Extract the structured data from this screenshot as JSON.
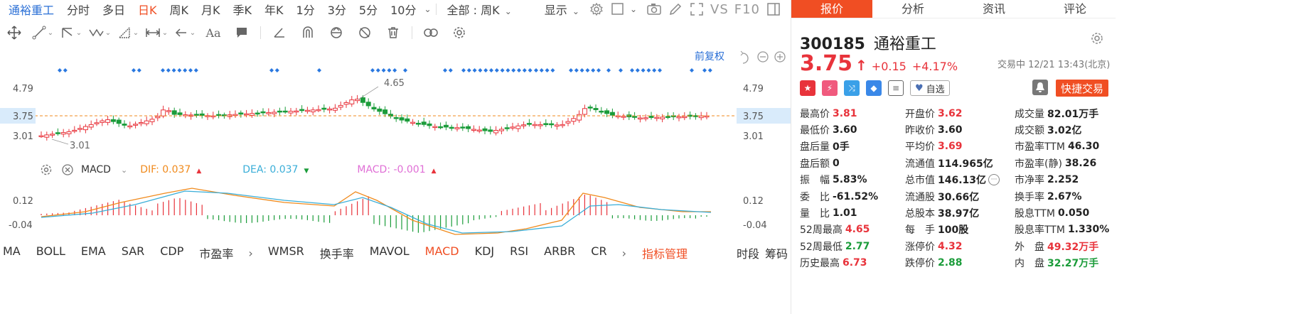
{
  "toolbar": {
    "stock_name": "通裕重工",
    "periods": [
      "分时",
      "多日",
      "日K",
      "周K",
      "月K",
      "季K",
      "年K",
      "1分",
      "3分",
      "5分",
      "10分"
    ],
    "active_period": "日K",
    "scope_label": "全部 : 周K",
    "display_label": "显示",
    "vs_label": "VS",
    "f10_label": "F10"
  },
  "tools": [
    "crosshair",
    "line",
    "channel",
    "wave",
    "measure",
    "range",
    "arrow",
    "text",
    "comment",
    "ray",
    "magnet",
    "sync",
    "hide",
    "delete",
    "link",
    "settings"
  ],
  "chart": {
    "adjust_label": "前复权",
    "price_labels": {
      "top": "4.79",
      "current": "3.75",
      "bottom": "3.01"
    },
    "annotation_high": "4.65",
    "annotation_low": "3.01",
    "macd_labels": {
      "top": "0.12",
      "bottom": "-0.04"
    }
  },
  "macd_legend": {
    "name": "MACD",
    "dif_label": "DIF: 0.037",
    "dea_label": "DEA: 0.037",
    "macd_label": "MACD: -0.001"
  },
  "indicator_tabs": [
    "MA",
    "BOLL",
    "EMA",
    "SAR",
    "CDP",
    "市盈率",
    "WMSR",
    "换手率",
    "MAVOL",
    "MACD",
    "KDJ",
    "RSI",
    "ARBR",
    "CR"
  ],
  "active_indicator": "MACD",
  "indicator_manage": "指标管理",
  "bottom_right": [
    "时段",
    "筹码"
  ],
  "panel": {
    "tabs": [
      "报价",
      "分析",
      "资讯",
      "评论"
    ],
    "active_tab": "报价",
    "code": "300185",
    "name": "通裕重工",
    "price": "3.75",
    "change": "+0.15",
    "change_pct": "+4.17%",
    "trade_status": "交易中 12/21 13:43(北京)",
    "fav_label": "自选",
    "trade_label": "快捷交易"
  },
  "stats": [
    [
      {
        "label": "最高价",
        "value": "3.81",
        "cls": "red"
      },
      {
        "label": "开盘价",
        "value": "3.62",
        "cls": "red"
      },
      {
        "label": "成交量",
        "value": "82.01万手",
        "cls": ""
      }
    ],
    [
      {
        "label": "最低价",
        "value": "3.60",
        "cls": ""
      },
      {
        "label": "昨收价",
        "value": "3.60",
        "cls": ""
      },
      {
        "label": "成交额",
        "value": "3.02亿",
        "cls": ""
      }
    ],
    [
      {
        "label": "盘后量",
        "value": "0手",
        "cls": ""
      },
      {
        "label": "平均价",
        "value": "3.69",
        "cls": "red"
      },
      {
        "label": "市盈率TTM",
        "value": "46.30",
        "cls": ""
      }
    ],
    [
      {
        "label": "盘后额",
        "value": "0",
        "cls": ""
      },
      {
        "label": "流通值",
        "value": "114.965亿",
        "cls": ""
      },
      {
        "label": "市盈率(静)",
        "value": "38.26",
        "cls": ""
      }
    ],
    [
      {
        "label": "振　幅",
        "value": "5.83%",
        "cls": ""
      },
      {
        "label": "总市值",
        "value": "146.13亿",
        "cls": ""
      },
      {
        "label": "市净率",
        "value": "2.252",
        "cls": ""
      }
    ],
    [
      {
        "label": "委　比",
        "value": "-61.52%",
        "cls": ""
      },
      {
        "label": "流通股",
        "value": "30.66亿",
        "cls": ""
      },
      {
        "label": "换手率",
        "value": "2.67%",
        "cls": ""
      }
    ],
    [
      {
        "label": "量　比",
        "value": "1.01",
        "cls": ""
      },
      {
        "label": "总股本",
        "value": "38.97亿",
        "cls": ""
      },
      {
        "label": "股息TTM",
        "value": "0.050",
        "cls": ""
      }
    ],
    [
      {
        "label": "52周最高",
        "value": "4.65",
        "cls": "red"
      },
      {
        "label": "每　手",
        "value": "100股",
        "cls": ""
      },
      {
        "label": "股息率TTM",
        "value": "1.330%",
        "cls": ""
      }
    ],
    [
      {
        "label": "52周最低",
        "value": "2.77",
        "cls": "green"
      },
      {
        "label": "涨停价",
        "value": "4.32",
        "cls": "red"
      },
      {
        "label": "外　盘",
        "value": "49.32万手",
        "cls": "red"
      }
    ],
    [
      {
        "label": "历史最高",
        "value": "6.73",
        "cls": "red"
      },
      {
        "label": "跌停价",
        "value": "2.88",
        "cls": "green"
      },
      {
        "label": "内　盘",
        "value": "32.27万手",
        "cls": "green"
      }
    ]
  ],
  "colors": {
    "up": "#e8333b",
    "down": "#1b9c3a",
    "accent": "#f04e23",
    "dif": "#f08a1c",
    "dea": "#3aaed8",
    "macd": "#e06fd6",
    "link": "#2a6fd6"
  }
}
